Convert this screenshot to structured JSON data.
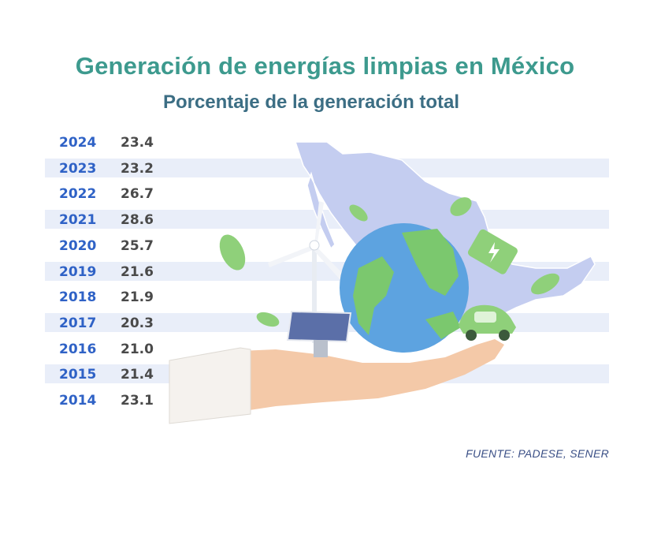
{
  "title": "Generación de energías limpias en México",
  "subtitle": "Porcentaje de la generación total",
  "source": "FUENTE: PADESE, SENER",
  "colors": {
    "title": "#3d9a8e",
    "subtitle": "#3c6e84",
    "year": "#2f62c6",
    "value": "#4a4a4a",
    "row_shade": "#e9eef9",
    "source": "#3a4f86"
  },
  "chart_data": {
    "type": "table",
    "title": "Generación de energías limpias en México",
    "subtitle": "Porcentaje de la generación total",
    "columns": [
      "",
      ""
    ],
    "rows": [
      {
        "year": "2024",
        "value": "23.4"
      },
      {
        "year": "2023",
        "value": "23.2"
      },
      {
        "year": "2022",
        "value": "26.7"
      },
      {
        "year": "2021",
        "value": "28.6"
      },
      {
        "year": "2020",
        "value": "25.7"
      },
      {
        "year": "2019",
        "value": "21.6"
      },
      {
        "year": "2018",
        "value": "21.9"
      },
      {
        "year": "2017",
        "value": "20.3"
      },
      {
        "year": "2016",
        "value": "21.0"
      },
      {
        "year": "2015",
        "value": "21.4"
      },
      {
        "year": "2014",
        "value": "23.1"
      }
    ]
  },
  "illustration": {
    "icons": [
      "mexico-map-icon",
      "wind-turbine-icon",
      "solar-panel-icon",
      "globe-icon",
      "battery-icon",
      "electric-car-icon",
      "leaf-icon",
      "open-hand-icon"
    ]
  }
}
